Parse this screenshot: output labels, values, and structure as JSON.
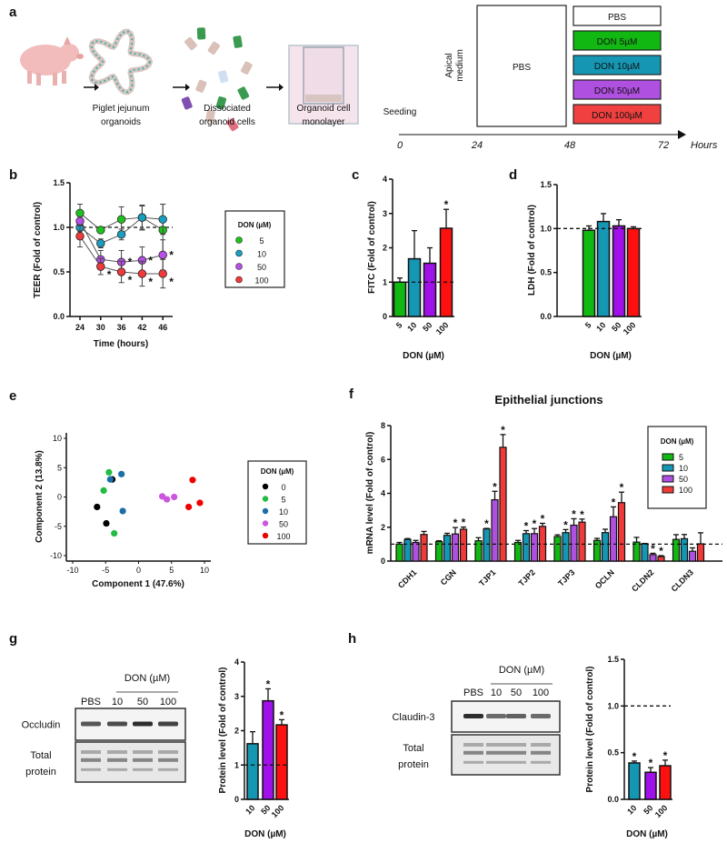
{
  "panel_labels": [
    "a",
    "b",
    "c",
    "d",
    "e",
    "f",
    "g",
    "h"
  ],
  "schematic": {
    "steps": [
      {
        "caption": [
          "Piglet jejunum",
          "organoids"
        ]
      },
      {
        "caption": [
          "Dissociated",
          "organoid cells"
        ]
      },
      {
        "caption": [
          "Organoid cell",
          "monolayer"
        ]
      }
    ],
    "timeline": {
      "seeding": "Seeding",
      "apical_label": [
        "Apical",
        "medium"
      ],
      "pre_treatment": "PBS",
      "ticks": [
        "0",
        "24",
        "48",
        "72"
      ],
      "unit": "Hours",
      "treatments": [
        {
          "label": "PBS",
          "color": "#ffffff"
        },
        {
          "label": "DON 5µM",
          "color": "#12b812"
        },
        {
          "label": "DON 10µM",
          "color": "#1597b3"
        },
        {
          "label": "DON 50µM",
          "color": "#b050e0"
        },
        {
          "label": "DON 100µM",
          "color": "#f04040"
        }
      ]
    }
  },
  "blots": {
    "g": {
      "header": "DON (µM)",
      "lanes": [
        "PBS",
        "10",
        "50",
        "100"
      ],
      "target": "Occludin",
      "loading": [
        "Total",
        "protein"
      ]
    },
    "h": {
      "header": "DON (µM)",
      "lanes": [
        "PBS",
        "10",
        "50",
        "100"
      ],
      "target": "Claudin-3",
      "loading": [
        "Total",
        "protein"
      ]
    }
  },
  "chart_data": [
    {
      "panel": "b",
      "type": "line",
      "xlabel": "Time (hours)",
      "ylabel": "TEER (Fold of control)",
      "x": [
        24,
        30,
        36,
        42,
        46
      ],
      "xticklabels": [
        "24",
        "30",
        "36",
        "42",
        "46"
      ],
      "ylim": [
        0,
        1.5
      ],
      "yticks": [
        0,
        0.5,
        1.0,
        1.5
      ],
      "yticklabels": [
        "0.0",
        "0.5",
        "1.0",
        "1.5"
      ],
      "reference_line": 1.0,
      "significance_marker": "*",
      "legend_title": "DON (µM)",
      "legend_position": "right",
      "series": [
        {
          "name": "5",
          "color": "#1ec21e",
          "values": [
            1.16,
            0.97,
            1.09,
            1.11,
            0.97
          ],
          "errors": [
            0.1,
            0.03,
            0.14,
            0.14,
            0.29
          ],
          "significant": [
            false,
            false,
            false,
            false,
            false
          ]
        },
        {
          "name": "10",
          "color": "#1a9ec0",
          "values": [
            1.0,
            0.82,
            0.92,
            1.11,
            1.09
          ],
          "errors": [
            0.05,
            0.05,
            0.06,
            0.13,
            0.17
          ],
          "significant": [
            false,
            false,
            false,
            false,
            false
          ]
        },
        {
          "name": "50",
          "color": "#b84fe6",
          "values": [
            1.07,
            0.64,
            0.61,
            0.63,
            0.69
          ],
          "errors": [
            0.05,
            0.1,
            0.13,
            0.15,
            0.17
          ],
          "significant": [
            false,
            false,
            true,
            true,
            true
          ]
        },
        {
          "name": "100",
          "color": "#f03a3a",
          "values": [
            0.9,
            0.56,
            0.5,
            0.48,
            0.48
          ],
          "errors": [
            0.12,
            0.09,
            0.12,
            0.14,
            0.16
          ],
          "significant": [
            false,
            true,
            true,
            true,
            true
          ]
        }
      ]
    },
    {
      "panel": "c",
      "type": "bar",
      "xlabel": "DON (µM)",
      "ylabel": "FITC (Fold of control)",
      "categories": [
        "5",
        "10",
        "50",
        "100"
      ],
      "values": [
        1.0,
        1.68,
        1.55,
        2.57
      ],
      "errors": [
        0.12,
        0.82,
        0.45,
        0.55
      ],
      "significant": [
        false,
        false,
        false,
        true
      ],
      "significance_marker": "*",
      "colors": [
        "#12b812",
        "#1597b3",
        "#a010e8",
        "#ff1010"
      ],
      "ylim": [
        0,
        4
      ],
      "yticks": [
        0,
        1,
        2,
        3,
        4
      ],
      "yticklabels": [
        "0",
        "1",
        "2",
        "3",
        "4"
      ],
      "reference_line": 1.0
    },
    {
      "panel": "d",
      "type": "bar",
      "xlabel": "DON (µM)",
      "ylabel": "LDH (Fold of control)",
      "categories": [
        "5",
        "10",
        "50",
        "100"
      ],
      "values": [
        0.98,
        1.08,
        1.03,
        1.0
      ],
      "errors": [
        0.05,
        0.09,
        0.07,
        0.02
      ],
      "significant": [
        false,
        false,
        false,
        false
      ],
      "significance_marker": "*",
      "colors": [
        "#12b812",
        "#1597b3",
        "#a010e8",
        "#ff1010"
      ],
      "ylim": [
        0,
        1.5
      ],
      "yticks": [
        0,
        0.5,
        1.0,
        1.5
      ],
      "yticklabels": [
        "0.0",
        "0.5",
        "1.0",
        "1.5"
      ],
      "reference_line": 1.0
    },
    {
      "panel": "e",
      "type": "scatter",
      "xlabel": "Component 1 (47.6%)",
      "ylabel": "Component 2 (13.8%)",
      "xlim": [
        -10,
        10
      ],
      "ylim": [
        -10,
        10
      ],
      "xticks": [
        -10,
        -5,
        0,
        5,
        10
      ],
      "xticklabels": [
        "-10",
        "-5",
        "0",
        "5",
        "10"
      ],
      "yticks": [
        -10,
        -5,
        0,
        5,
        10
      ],
      "yticklabels": [
        "-10",
        "-5",
        "0",
        "5",
        "10"
      ],
      "legend_title": "DON (µM)",
      "legend_position": "right",
      "series": [
        {
          "name": "0",
          "color": "#000000",
          "points": [
            [
              -4.0,
              3.0
            ],
            [
              -6.3,
              -1.7
            ],
            [
              -4.9,
              -4.5
            ]
          ]
        },
        {
          "name": "5",
          "color": "#22bb44",
          "points": [
            [
              -4.5,
              4.2
            ],
            [
              -5.3,
              1.1
            ],
            [
              -3.7,
              -6.2
            ]
          ]
        },
        {
          "name": "10",
          "color": "#1a6fa8",
          "points": [
            [
              -4.3,
              3.0
            ],
            [
              -2.6,
              3.9
            ],
            [
              -2.4,
              -2.4
            ]
          ]
        },
        {
          "name": "50",
          "color": "#cc55dd",
          "points": [
            [
              3.6,
              0.1
            ],
            [
              4.3,
              -0.4
            ],
            [
              5.4,
              0.0
            ]
          ]
        },
        {
          "name": "100",
          "color": "#ee0000",
          "points": [
            [
              8.2,
              2.9
            ],
            [
              7.6,
              -1.7
            ],
            [
              9.3,
              -1.0
            ]
          ]
        }
      ]
    },
    {
      "panel": "f",
      "type": "bar",
      "title": "Epithelial junctions",
      "xlabel": "",
      "ylabel": "mRNA level (Fold of control)",
      "categories": [
        "CDH1",
        "CGN",
        "TJP1",
        "TJP2",
        "TJP3",
        "OCLN",
        "CLDN2",
        "CLDN3"
      ],
      "ylim": [
        0,
        8
      ],
      "yticks": [
        0,
        2,
        4,
        6,
        8
      ],
      "yticklabels": [
        "0",
        "2",
        "4",
        "6",
        "8"
      ],
      "reference_line": 1.0,
      "significance_marker": "*",
      "legend_title": "DON (µM)",
      "legend_position": "top-right",
      "series": [
        {
          "name": "5",
          "color": "#12b812",
          "values": [
            1.0,
            1.15,
            1.2,
            1.1,
            1.45,
            1.22,
            1.12,
            1.28
          ],
          "errors": [
            0.1,
            0.05,
            0.18,
            0.12,
            0.1,
            0.12,
            0.28,
            0.28
          ],
          "significant": [
            false,
            false,
            false,
            false,
            false,
            false,
            false,
            false
          ]
        },
        {
          "name": "10",
          "color": "#1597b3",
          "values": [
            1.28,
            1.52,
            1.9,
            1.62,
            1.68,
            1.68,
            1.02,
            1.32
          ],
          "errors": [
            0.05,
            0.12,
            0.03,
            0.18,
            0.18,
            0.2,
            0.02,
            0.25
          ],
          "significant": [
            false,
            false,
            true,
            true,
            true,
            false,
            false,
            false
          ]
        },
        {
          "name": "50",
          "color": "#b050e0",
          "values": [
            1.1,
            1.6,
            3.62,
            1.62,
            2.12,
            2.62,
            0.38,
            0.58
          ],
          "errors": [
            0.12,
            0.38,
            0.5,
            0.3,
            0.38,
            0.58,
            0.08,
            0.2
          ],
          "significant": [
            false,
            true,
            true,
            true,
            true,
            true,
            true,
            false
          ]
        },
        {
          "name": "100",
          "color": "#f03a3a",
          "values": [
            1.57,
            1.88,
            6.72,
            2.05,
            2.3,
            3.45,
            0.27,
            1.02
          ],
          "errors": [
            0.18,
            0.13,
            0.75,
            0.18,
            0.18,
            0.62,
            0.05,
            0.65
          ],
          "significant": [
            false,
            true,
            true,
            true,
            true,
            true,
            true,
            false
          ]
        }
      ]
    },
    {
      "panel": "g",
      "type": "bar",
      "xlabel": "DON (µM)",
      "ylabel": "Protein level (Fold of control)",
      "categories": [
        "10",
        "50",
        "100"
      ],
      "values": [
        1.62,
        2.87,
        2.17
      ],
      "errors": [
        0.35,
        0.35,
        0.15
      ],
      "significant": [
        false,
        true,
        true
      ],
      "significance_marker": "*",
      "colors": [
        "#1597b3",
        "#a010e8",
        "#ff1010"
      ],
      "ylim": [
        0,
        4
      ],
      "yticks": [
        0,
        1,
        2,
        3,
        4
      ],
      "yticklabels": [
        "0",
        "1",
        "2",
        "3",
        "4"
      ],
      "reference_line": 1.0
    },
    {
      "panel": "h",
      "type": "bar",
      "xlabel": "DON (µM)",
      "ylabel": "Protein level (Fold of control)",
      "categories": [
        "10",
        "50",
        "100"
      ],
      "values": [
        0.39,
        0.29,
        0.36
      ],
      "errors": [
        0.02,
        0.05,
        0.06
      ],
      "significant": [
        true,
        true,
        true
      ],
      "significance_marker": "*",
      "colors": [
        "#1597b3",
        "#a010e8",
        "#ff1010"
      ],
      "ylim": [
        0,
        1.5
      ],
      "yticks": [
        0,
        0.5,
        1.0,
        1.5
      ],
      "yticklabels": [
        "0.0",
        "0.5",
        "1.0",
        "1.5"
      ],
      "reference_line": 1.0
    }
  ]
}
